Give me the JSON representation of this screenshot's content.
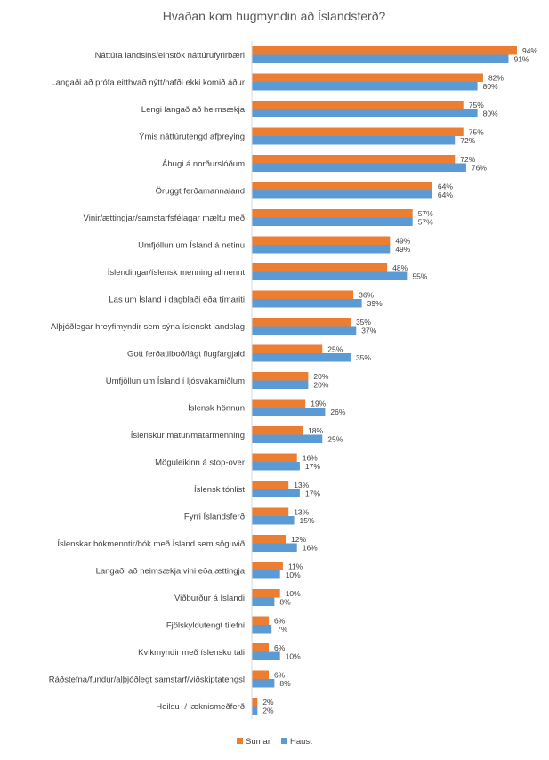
{
  "chart_data": {
    "type": "bar",
    "orientation": "horizontal",
    "title": "Hvaðan kom hugmyndin að Íslandsferð?",
    "xlim": [
      0,
      100
    ],
    "grid": false,
    "legend": "bottom",
    "categories": [
      "Náttúra landsins/einstök náttúrufyrirbæri",
      "Langaði að prófa eitthvað nýtt/hafði ekki komið áður",
      "Lengi langað að heimsækja",
      "Ýmis náttúrutengd afþreying",
      "Áhugi á norðurslóðum",
      "Öruggt ferðamannaland",
      "Vinir/ættingjar/samstarfsfélagar mæltu með",
      "Umfjöllun um Ísland á netinu",
      "Íslendingar/íslensk menning almennt",
      "Las um Ísland í dagblaði eða tímariti",
      "Alþjóðlegar hreyfimyndir sem sýna íslenskt landslag",
      "Gott ferðatilboð/lágt flugfargjald",
      "Umfjöllun um Ísland í ljósvakamiðlum",
      "Íslensk hönnun",
      "Íslenskur matur/matarmenning",
      "Möguleikinn á stop-over",
      "Íslensk tónlist",
      "Fyrri Íslandsferð",
      "Íslenskar bókmenntir/bók með Ísland sem söguvið",
      "Langaði að heimsækja vini eða ættingja",
      "Viðburður á Íslandi",
      "Fjölskyldutengt tilefni",
      "Kvikmyndir með íslensku tali",
      "Ráðstefna/fundur/alþjóðlegt samstarf/viðskiptatengsl",
      "Heilsu- / læknismeðferð"
    ],
    "series": [
      {
        "name": "Sumar",
        "color": "#ED7D31",
        "values": [
          94,
          82,
          75,
          75,
          72,
          64,
          57,
          49,
          48,
          36,
          35,
          25,
          20,
          19,
          18,
          16,
          13,
          13,
          12,
          11,
          10,
          6,
          6,
          6,
          2
        ],
        "labels": [
          "94%",
          "82%",
          "75%",
          "75%",
          "72%",
          "64%",
          "57%",
          "49%",
          "48%",
          "36%",
          "35%",
          "25%",
          "20%",
          "19%",
          "18%",
          "16%",
          "13%",
          "13%",
          "12%",
          "11%",
          "10%",
          "6%",
          "6%",
          "6%",
          "2%"
        ]
      },
      {
        "name": "Haust",
        "color": "#5B9BD5",
        "values": [
          91,
          80,
          80,
          72,
          76,
          64,
          57,
          49,
          55,
          39,
          37,
          35,
          20,
          26,
          25,
          17,
          17,
          15,
          16,
          10,
          8,
          7,
          10,
          8,
          2
        ],
        "labels": [
          "91%",
          "80%",
          "80%",
          "72%",
          "76%",
          "64%",
          "57%",
          "49%",
          "55%",
          "39%",
          "37%",
          "35%",
          "20%",
          "26%",
          "25%",
          "17%",
          "17%",
          "15%",
          "16%",
          "10%",
          "8%",
          "7%",
          "10%",
          "8%",
          "2%"
        ]
      }
    ]
  }
}
